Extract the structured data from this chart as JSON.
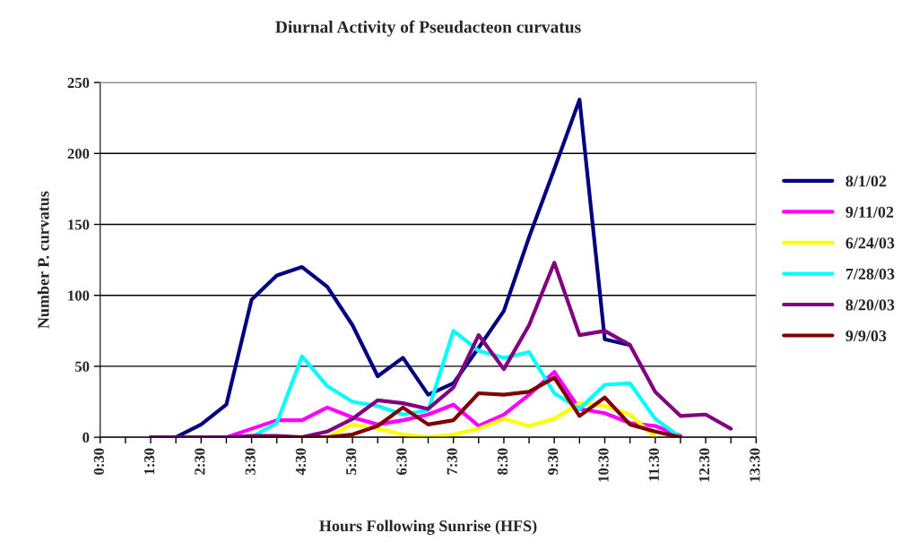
{
  "chart_data": {
    "type": "line",
    "title": "Diurnal Activity of Pseudacteon curvatus",
    "xlabel": "Hours Following Sunrise (HFS)",
    "ylabel": "Number P. curvatus",
    "xlim": [
      0.5,
      13.5
    ],
    "xticks": [
      {
        "value": 0.5,
        "label": "0:30"
      },
      {
        "value": 1.0,
        "label": null
      },
      {
        "value": 1.5,
        "label": "1:30"
      },
      {
        "value": 2.0,
        "label": null
      },
      {
        "value": 2.5,
        "label": "2:30"
      },
      {
        "value": 3.0,
        "label": null
      },
      {
        "value": 3.5,
        "label": "3:30"
      },
      {
        "value": 4.0,
        "label": null
      },
      {
        "value": 4.5,
        "label": "4:30"
      },
      {
        "value": 5.0,
        "label": null
      },
      {
        "value": 5.5,
        "label": "5:30"
      },
      {
        "value": 6.0,
        "label": null
      },
      {
        "value": 6.5,
        "label": "6:30"
      },
      {
        "value": 7.0,
        "label": null
      },
      {
        "value": 7.5,
        "label": "7:30"
      },
      {
        "value": 8.0,
        "label": null
      },
      {
        "value": 8.5,
        "label": "8:30"
      },
      {
        "value": 9.0,
        "label": null
      },
      {
        "value": 9.5,
        "label": "9:30"
      },
      {
        "value": 10.0,
        "label": null
      },
      {
        "value": 10.5,
        "label": "10:30"
      },
      {
        "value": 11.0,
        "label": null
      },
      {
        "value": 11.5,
        "label": "11:30"
      },
      {
        "value": 12.0,
        "label": null
      },
      {
        "value": 12.5,
        "label": "12:30"
      },
      {
        "value": 13.0,
        "label": null
      },
      {
        "value": 13.5,
        "label": "13:30"
      }
    ],
    "ylim": [
      0,
      250
    ],
    "yticks": [
      0,
      50,
      100,
      150,
      200,
      250
    ],
    "grid": "y",
    "legend": "right",
    "marker": "none",
    "line_style": "solid",
    "series": [
      {
        "name": "8/1/02",
        "color": "#000080",
        "x": [
          1.5,
          2,
          2.5,
          3,
          3.5,
          4,
          4.5,
          5,
          5.5,
          6,
          6.5,
          7,
          7.5,
          8,
          8.5,
          9,
          9.5,
          10,
          10.5,
          11
        ],
        "values": [
          0,
          0,
          9,
          23,
          97,
          114,
          120,
          106,
          79,
          43,
          56,
          30,
          38,
          63,
          89,
          141,
          189,
          238,
          69,
          65
        ]
      },
      {
        "name": "9/11/02",
        "color": "#ff00ff",
        "x": [
          2.5,
          3,
          3.5,
          4,
          4.5,
          5,
          5.5,
          6,
          6.5,
          7,
          7.5,
          8,
          8.5,
          9,
          9.5,
          10,
          10.5,
          11,
          11.5,
          12
        ],
        "values": [
          0,
          0,
          6,
          12,
          12,
          21,
          14,
          9,
          12,
          16,
          23,
          8,
          16,
          30,
          46,
          20,
          17,
          10,
          8,
          1
        ]
      },
      {
        "name": "6/24/03",
        "color": "#ffff00",
        "x": [
          4.5,
          5,
          5.5,
          6,
          6.5,
          7,
          7.5,
          8,
          8.5,
          9,
          9.5,
          10,
          10.5,
          11,
          11.5
        ],
        "values": [
          0,
          0,
          9,
          6,
          2,
          0,
          2,
          6,
          13,
          8,
          13,
          24,
          22,
          16,
          0
        ]
      },
      {
        "name": "7/28/03",
        "color": "#00ffff",
        "x": [
          3,
          3.5,
          4,
          4.5,
          5,
          5.5,
          6,
          6.5,
          7,
          7.5,
          8,
          8.5,
          9,
          9.5,
          10,
          10.5,
          11,
          11.5,
          12
        ],
        "values": [
          0,
          0,
          10,
          57,
          36,
          25,
          22,
          16,
          19,
          75,
          61,
          56,
          60,
          31,
          20,
          37,
          38,
          13,
          0
        ]
      },
      {
        "name": "8/20/03",
        "color": "#800080",
        "x": [
          1.5,
          2,
          2.5,
          3,
          3.5,
          4,
          4.5,
          5,
          5.5,
          6,
          6.5,
          7,
          7.5,
          8,
          8.5,
          9,
          9.5,
          10,
          10.5,
          11,
          11.5,
          12,
          12.5,
          13
        ],
        "values": [
          0,
          0,
          0,
          0,
          1,
          1,
          0,
          4,
          13,
          26,
          24,
          20,
          35,
          72,
          48,
          79,
          123,
          72,
          75,
          65,
          32,
          15,
          16,
          6
        ]
      },
      {
        "name": "9/9/03",
        "color": "#800000",
        "x": [
          3.5,
          4,
          4.5,
          5,
          5.5,
          6,
          6.5,
          7,
          7.5,
          8,
          8.5,
          9,
          9.5,
          10,
          10.5,
          11,
          11.5,
          12
        ],
        "values": [
          0,
          0,
          0,
          0,
          2,
          8,
          21,
          9,
          12,
          31,
          30,
          32,
          42,
          15,
          28,
          9,
          4,
          0
        ]
      }
    ]
  }
}
